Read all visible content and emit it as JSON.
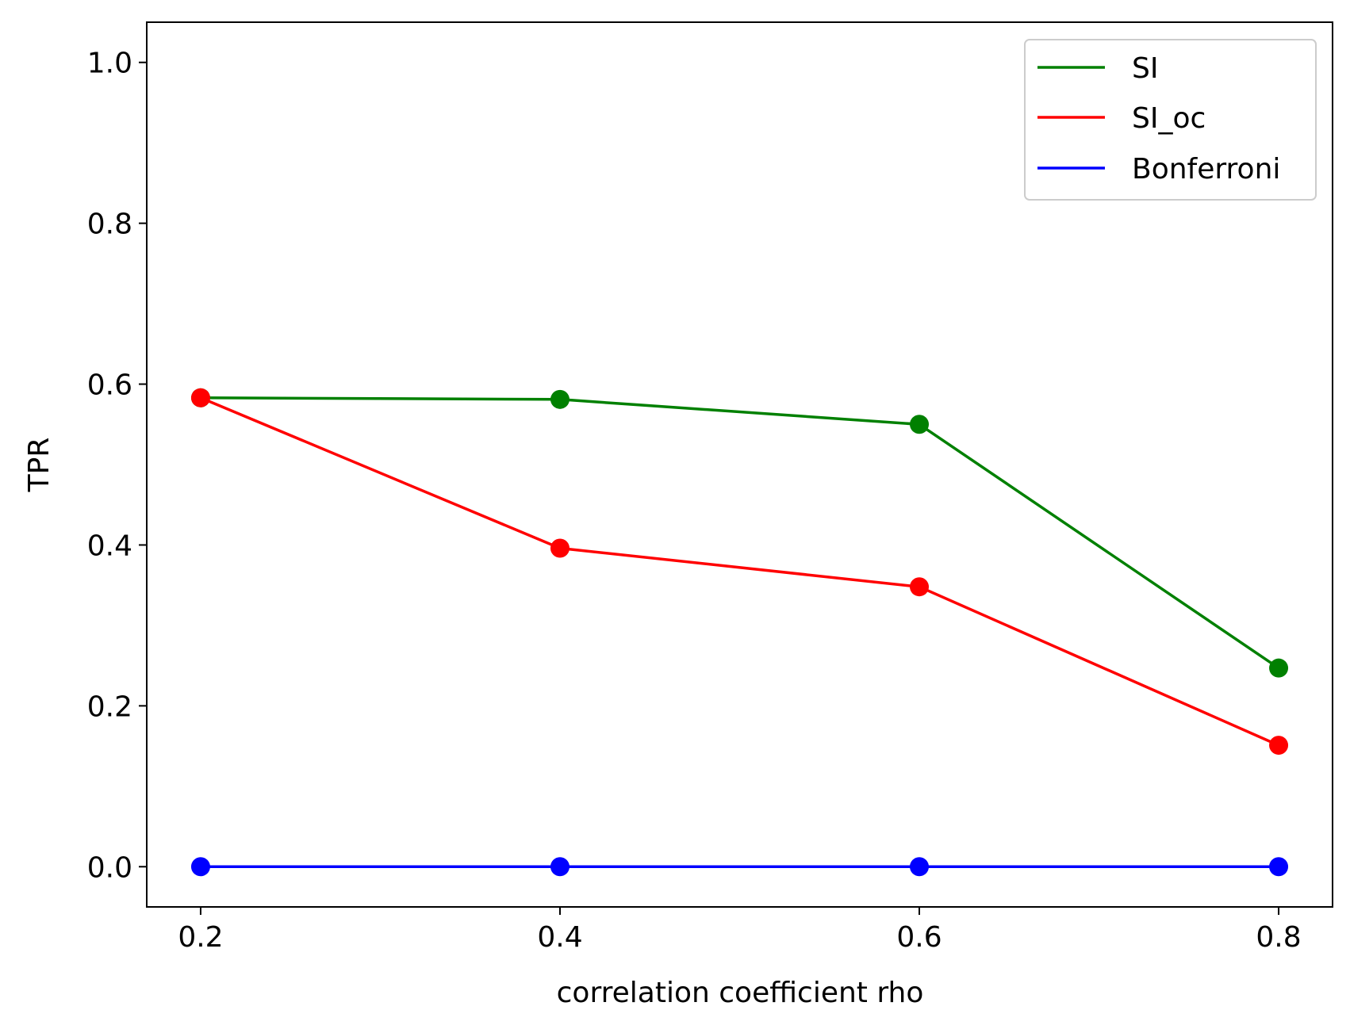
{
  "chart_data": {
    "type": "line",
    "title": "",
    "xlabel": "correlation coefficient rho",
    "ylabel": "TPR",
    "x": [
      0.2,
      0.4,
      0.6,
      0.8
    ],
    "x_tick_labels": [
      "0.2",
      "0.4",
      "0.6",
      "0.8"
    ],
    "xlim": [
      0.17,
      0.83
    ],
    "ylim": [
      -0.05,
      1.05
    ],
    "y_ticks": [
      0.0,
      0.2,
      0.4,
      0.6,
      0.8,
      1.0
    ],
    "y_tick_labels": [
      "0.0",
      "0.2",
      "0.4",
      "0.6",
      "0.8",
      "1.0"
    ],
    "grid": false,
    "legend_position": "top-right",
    "series": [
      {
        "name": "SI",
        "color": "#008000",
        "values": [
          0.583,
          0.581,
          0.55,
          0.247
        ]
      },
      {
        "name": "SI_oc",
        "color": "#ff0000",
        "values": [
          0.583,
          0.396,
          0.348,
          0.151
        ]
      },
      {
        "name": "Bonferroni",
        "color": "#0000ff",
        "values": [
          0.0,
          0.0,
          0.0,
          0.0
        ]
      }
    ]
  }
}
